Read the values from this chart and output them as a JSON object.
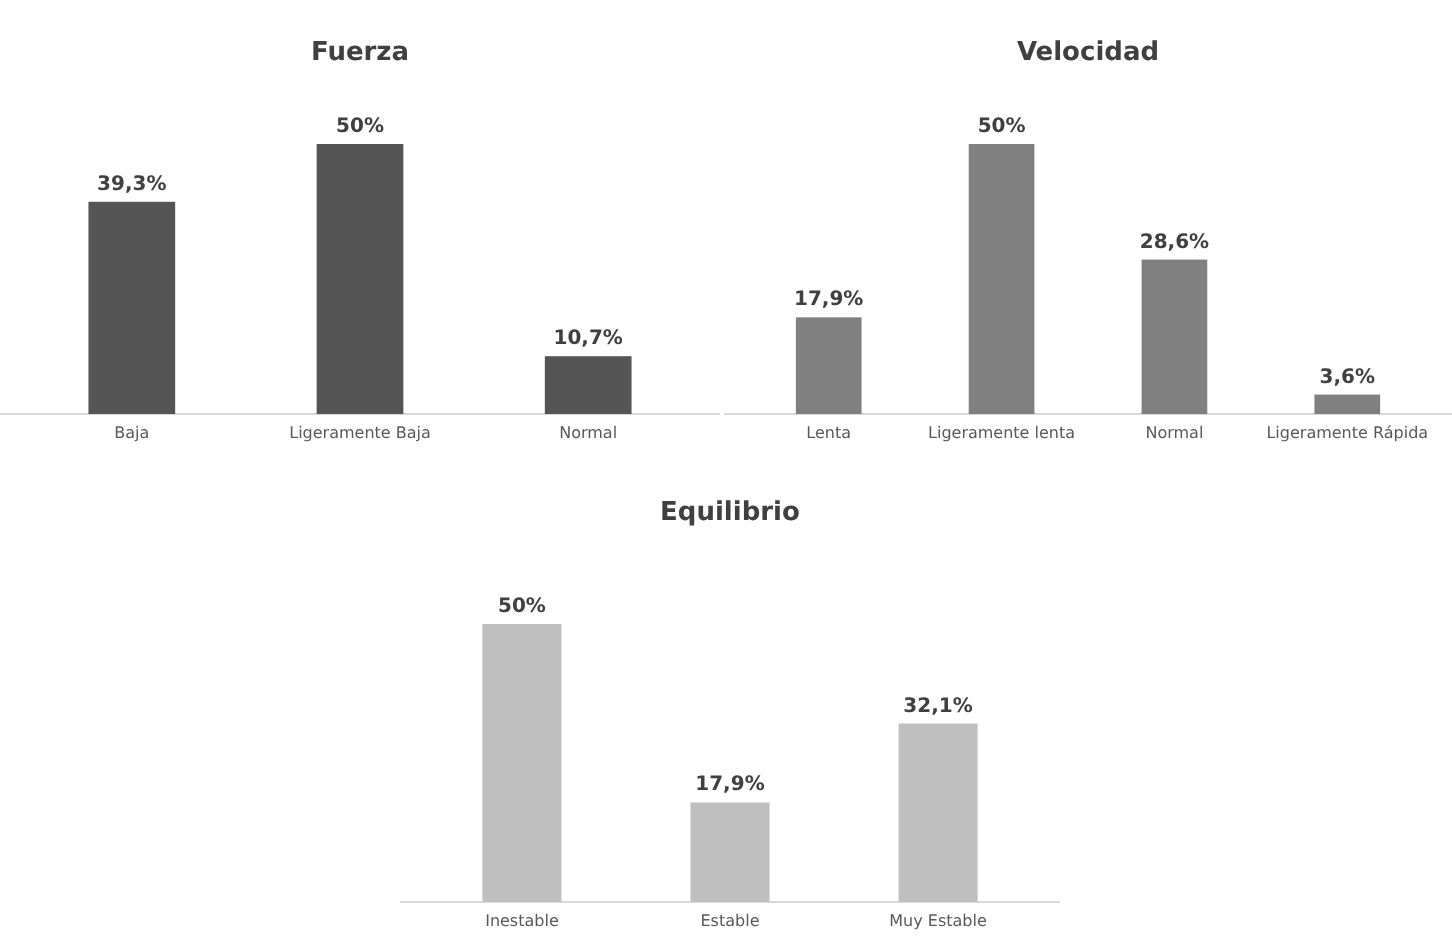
{
  "chart_data": [
    {
      "type": "bar",
      "title": "Fuerza",
      "categories": [
        "Baja",
        "Ligeramente Baja",
        "Normal"
      ],
      "values": [
        39.3,
        50,
        10.7
      ],
      "value_labels": [
        "39,3%",
        "50%",
        "10,7%"
      ],
      "color": "#555555"
    },
    {
      "type": "bar",
      "title": "Velocidad",
      "categories": [
        "Lenta",
        "Ligeramente lenta",
        "Normal",
        "Ligeramente Rápida"
      ],
      "values": [
        17.9,
        50,
        28.6,
        3.6
      ],
      "value_labels": [
        "17,9%",
        "50%",
        "28,6%",
        "3,6%"
      ],
      "color": "#808080"
    },
    {
      "type": "bar",
      "title": "Equilibrio",
      "categories": [
        "Inestable",
        "Estable",
        "Muy Estable"
      ],
      "values": [
        50,
        17.9,
        32.1
      ],
      "value_labels": [
        "50%",
        "17,9%",
        "32,1%"
      ],
      "color": "#bfbfbf"
    }
  ]
}
